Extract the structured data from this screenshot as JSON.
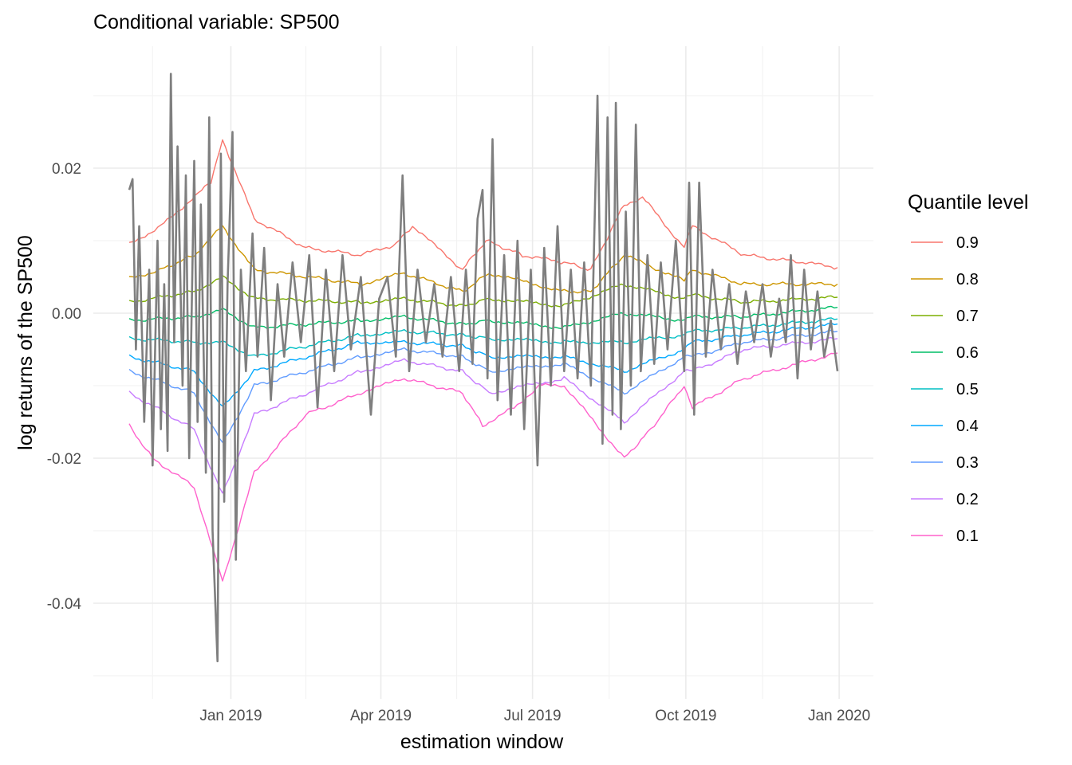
{
  "chart_data": {
    "type": "line",
    "title": "Conditional variable: SP500",
    "xlabel": "estimation window",
    "ylabel": "log returns of the SP500",
    "x_range": [
      "2018-11-01",
      "2019-12-31"
    ],
    "ylim": [
      -0.051,
      0.034
    ],
    "y_ticks": [
      -0.04,
      -0.02,
      0.0,
      0.02
    ],
    "y_tick_labels": [
      "-0.04",
      "-0.02",
      "0.00",
      "0.02"
    ],
    "x_ticks": [
      "2019-01-01",
      "2019-04-01",
      "2019-07-01",
      "2019-10-01",
      "2020-01-01"
    ],
    "x_tick_labels": [
      "Jan 2019",
      "Apr 2019",
      "Jul 2019",
      "Oct 2019",
      "Jan 2020"
    ],
    "grid": true,
    "legend": {
      "title": "Quantile level",
      "placement": "right",
      "entries": [
        "0.9",
        "0.8",
        "0.7",
        "0.6",
        "0.5",
        "0.4",
        "0.3",
        "0.2",
        "0.1"
      ]
    },
    "returns_series": {
      "color": "#7f7f7f",
      "points": [
        [
          "2018-11-01",
          0.017
        ],
        [
          "2018-11-03",
          0.0185
        ],
        [
          "2018-11-05",
          -0.005
        ],
        [
          "2018-11-07",
          0.012
        ],
        [
          "2018-11-10",
          -0.015
        ],
        [
          "2018-11-13",
          0.006
        ],
        [
          "2018-11-15",
          -0.021
        ],
        [
          "2018-11-18",
          0.01
        ],
        [
          "2018-11-20",
          -0.016
        ],
        [
          "2018-11-22",
          0.004
        ],
        [
          "2018-11-24",
          -0.019
        ],
        [
          "2018-11-26",
          0.033
        ],
        [
          "2018-11-28",
          -0.004
        ],
        [
          "2018-11-30",
          0.023
        ],
        [
          "2018-12-03",
          -0.01
        ],
        [
          "2018-12-05",
          0.019
        ],
        [
          "2018-12-07",
          -0.02
        ],
        [
          "2018-12-10",
          0.021
        ],
        [
          "2018-12-12",
          -0.015
        ],
        [
          "2018-12-14",
          0.015
        ],
        [
          "2018-12-17",
          -0.022
        ],
        [
          "2018-12-19",
          0.027
        ],
        [
          "2018-12-21",
          -0.03
        ],
        [
          "2018-12-24",
          -0.048
        ],
        [
          "2018-12-26",
          0.022
        ],
        [
          "2018-12-28",
          -0.026
        ],
        [
          "2018-12-30",
          0.004
        ],
        [
          "2019-01-02",
          0.025
        ],
        [
          "2019-01-04",
          -0.034
        ],
        [
          "2019-01-07",
          0.006
        ],
        [
          "2019-01-10",
          -0.008
        ],
        [
          "2019-01-14",
          0.011
        ],
        [
          "2019-01-17",
          -0.006
        ],
        [
          "2019-01-21",
          0.009
        ],
        [
          "2019-01-25",
          -0.012
        ],
        [
          "2019-01-29",
          0.004
        ],
        [
          "2019-02-02",
          -0.006
        ],
        [
          "2019-02-07",
          0.007
        ],
        [
          "2019-02-12",
          -0.004
        ],
        [
          "2019-02-17",
          0.008
        ],
        [
          "2019-02-22",
          -0.013
        ],
        [
          "2019-02-27",
          0.006
        ],
        [
          "2019-03-04",
          -0.008
        ],
        [
          "2019-03-09",
          0.008
        ],
        [
          "2019-03-14",
          -0.005
        ],
        [
          "2019-03-20",
          0.005
        ],
        [
          "2019-03-26",
          -0.014
        ],
        [
          "2019-03-31",
          0.002
        ],
        [
          "2019-04-05",
          0.005
        ],
        [
          "2019-04-10",
          -0.006
        ],
        [
          "2019-04-14",
          0.019
        ],
        [
          "2019-04-18",
          -0.008
        ],
        [
          "2019-04-23",
          0.006
        ],
        [
          "2019-04-28",
          -0.004
        ],
        [
          "2019-05-03",
          0.004
        ],
        [
          "2019-05-08",
          -0.006
        ],
        [
          "2019-05-13",
          0.005
        ],
        [
          "2019-05-18",
          -0.008
        ],
        [
          "2019-05-22",
          0.006
        ],
        [
          "2019-05-26",
          -0.007
        ],
        [
          "2019-05-29",
          0.013
        ],
        [
          "2019-06-01",
          0.017
        ],
        [
          "2019-06-04",
          -0.009
        ],
        [
          "2019-06-07",
          0.024
        ],
        [
          "2019-06-10",
          -0.012
        ],
        [
          "2019-06-14",
          0.008
        ],
        [
          "2019-06-18",
          -0.014
        ],
        [
          "2019-06-22",
          0.01
        ],
        [
          "2019-06-26",
          -0.016
        ],
        [
          "2019-06-30",
          0.006
        ],
        [
          "2019-07-04",
          -0.021
        ],
        [
          "2019-07-08",
          0.009
        ],
        [
          "2019-07-12",
          -0.01
        ],
        [
          "2019-07-16",
          0.012
        ],
        [
          "2019-07-20",
          -0.008
        ],
        [
          "2019-07-24",
          0.006
        ],
        [
          "2019-07-28",
          -0.009
        ],
        [
          "2019-08-01",
          0.007
        ],
        [
          "2019-08-05",
          -0.01
        ],
        [
          "2019-08-09",
          0.03
        ],
        [
          "2019-08-12",
          -0.018
        ],
        [
          "2019-08-15",
          0.027
        ],
        [
          "2019-08-18",
          -0.014
        ],
        [
          "2019-08-20",
          0.029
        ],
        [
          "2019-08-23",
          -0.016
        ],
        [
          "2019-08-26",
          0.014
        ],
        [
          "2019-08-29",
          -0.01
        ],
        [
          "2019-09-01",
          0.026
        ],
        [
          "2019-09-04",
          -0.008
        ],
        [
          "2019-09-08",
          0.008
        ],
        [
          "2019-09-12",
          -0.007
        ],
        [
          "2019-09-16",
          0.007
        ],
        [
          "2019-09-20",
          -0.005
        ],
        [
          "2019-09-25",
          0.01
        ],
        [
          "2019-09-30",
          -0.008
        ],
        [
          "2019-10-03",
          0.018
        ],
        [
          "2019-10-06",
          -0.014
        ],
        [
          "2019-10-09",
          0.018
        ],
        [
          "2019-10-13",
          -0.006
        ],
        [
          "2019-10-17",
          0.006
        ],
        [
          "2019-10-22",
          -0.005
        ],
        [
          "2019-10-27",
          0.004
        ],
        [
          "2019-11-01",
          -0.007
        ],
        [
          "2019-11-06",
          0.003
        ],
        [
          "2019-11-11",
          -0.004
        ],
        [
          "2019-11-16",
          0.004
        ],
        [
          "2019-11-21",
          -0.006
        ],
        [
          "2019-11-26",
          0.002
        ],
        [
          "2019-11-30",
          -0.004
        ],
        [
          "2019-12-03",
          0.008
        ],
        [
          "2019-12-07",
          -0.009
        ],
        [
          "2019-12-11",
          0.006
        ],
        [
          "2019-12-15",
          -0.005
        ],
        [
          "2019-12-19",
          0.003
        ],
        [
          "2019-12-23",
          -0.006
        ],
        [
          "2019-12-27",
          -0.001
        ],
        [
          "2019-12-31",
          -0.008
        ]
      ]
    },
    "series": [
      {
        "name": "0.9",
        "color": "#F8766D",
        "x": [
          "2018-11-01",
          "2018-11-20",
          "2018-12-05",
          "2018-12-20",
          "2018-12-27",
          "2019-01-15",
          "2019-02-15",
          "2019-03-20",
          "2019-04-10",
          "2019-04-20",
          "2019-05-20",
          "2019-06-03",
          "2019-06-25",
          "2019-07-20",
          "2019-08-05",
          "2019-08-25",
          "2019-09-05",
          "2019-09-30",
          "2019-10-05",
          "2019-11-05",
          "2019-12-10",
          "2019-12-31"
        ],
        "values": [
          0.0095,
          0.012,
          0.015,
          0.018,
          0.024,
          0.013,
          0.009,
          0.008,
          0.0095,
          0.012,
          0.006,
          0.01,
          0.008,
          0.007,
          0.006,
          0.015,
          0.016,
          0.009,
          0.012,
          0.008,
          0.007,
          0.0063
        ]
      },
      {
        "name": "0.8",
        "color": "#CD9600",
        "x": [
          "2018-11-01",
          "2018-11-20",
          "2018-12-10",
          "2018-12-27",
          "2019-01-15",
          "2019-03-20",
          "2019-04-15",
          "2019-05-20",
          "2019-06-05",
          "2019-07-20",
          "2019-08-05",
          "2019-08-25",
          "2019-09-30",
          "2019-10-05",
          "2019-11-05",
          "2019-12-31"
        ],
        "values": [
          0.0048,
          0.006,
          0.008,
          0.012,
          0.006,
          0.004,
          0.0055,
          0.003,
          0.0055,
          0.003,
          0.003,
          0.008,
          0.0045,
          0.006,
          0.004,
          0.004
        ]
      },
      {
        "name": "0.7",
        "color": "#7CAE00",
        "x": [
          "2018-11-01",
          "2018-12-10",
          "2018-12-27",
          "2019-01-15",
          "2019-03-20",
          "2019-04-15",
          "2019-05-20",
          "2019-06-05",
          "2019-07-20",
          "2019-08-25",
          "2019-09-30",
          "2019-10-05",
          "2019-11-05",
          "2019-12-31"
        ],
        "values": [
          0.0015,
          0.003,
          0.005,
          0.002,
          0.0015,
          0.002,
          0.001,
          0.002,
          0.001,
          0.004,
          0.002,
          0.0025,
          0.0015,
          0.0022
        ]
      },
      {
        "name": "0.6",
        "color": "#00BE67",
        "x": [
          "2018-11-01",
          "2018-12-10",
          "2018-12-27",
          "2019-01-15",
          "2019-03-20",
          "2019-04-15",
          "2019-05-20",
          "2019-06-05",
          "2019-07-20",
          "2019-08-25",
          "2019-09-30",
          "2019-10-05",
          "2019-11-05",
          "2019-12-31"
        ],
        "values": [
          -0.001,
          -0.0005,
          0.0005,
          -0.002,
          -0.001,
          -0.0005,
          -0.0015,
          -0.001,
          -0.002,
          0.0,
          -0.001,
          -0.0005,
          -0.0005,
          0.0008
        ]
      },
      {
        "name": "0.5",
        "color": "#00BFC4",
        "x": [
          "2018-11-01",
          "2018-12-10",
          "2018-12-27",
          "2019-01-15",
          "2019-03-20",
          "2019-04-15",
          "2019-05-20",
          "2019-06-05",
          "2019-07-20",
          "2019-08-25",
          "2019-09-30",
          "2019-10-05",
          "2019-11-05",
          "2019-12-31"
        ],
        "values": [
          -0.0035,
          -0.004,
          -0.004,
          -0.006,
          -0.003,
          -0.0025,
          -0.003,
          -0.0035,
          -0.004,
          -0.004,
          -0.003,
          -0.0025,
          -0.002,
          -0.0008
        ]
      },
      {
        "name": "0.4",
        "color": "#00A9FF",
        "x": [
          "2018-11-01",
          "2018-12-10",
          "2018-12-27",
          "2019-01-15",
          "2019-03-20",
          "2019-04-15",
          "2019-05-20",
          "2019-06-05",
          "2019-07-20",
          "2019-08-25",
          "2019-09-30",
          "2019-10-05",
          "2019-11-05",
          "2019-12-31"
        ],
        "values": [
          -0.006,
          -0.008,
          -0.013,
          -0.008,
          -0.004,
          -0.004,
          -0.0045,
          -0.006,
          -0.006,
          -0.008,
          -0.005,
          -0.004,
          -0.003,
          -0.0015
        ]
      },
      {
        "name": "0.3",
        "color": "#619CFF",
        "x": [
          "2018-11-01",
          "2018-12-10",
          "2018-12-27",
          "2019-01-15",
          "2019-03-20",
          "2019-04-15",
          "2019-05-20",
          "2019-06-05",
          "2019-07-20",
          "2019-08-25",
          "2019-09-30",
          "2019-10-05",
          "2019-11-05",
          "2019-12-31"
        ],
        "values": [
          -0.008,
          -0.011,
          -0.018,
          -0.01,
          -0.006,
          -0.005,
          -0.006,
          -0.008,
          -0.007,
          -0.011,
          -0.006,
          -0.006,
          -0.004,
          -0.0025
        ]
      },
      {
        "name": "0.2",
        "color": "#C77CFF",
        "x": [
          "2018-11-01",
          "2018-12-10",
          "2018-12-27",
          "2019-01-15",
          "2019-03-20",
          "2019-04-15",
          "2019-05-20",
          "2019-06-05",
          "2019-07-20",
          "2019-08-25",
          "2019-09-30",
          "2019-10-05",
          "2019-11-05",
          "2019-12-31"
        ],
        "values": [
          -0.011,
          -0.016,
          -0.025,
          -0.014,
          -0.008,
          -0.0065,
          -0.008,
          -0.011,
          -0.009,
          -0.015,
          -0.008,
          -0.008,
          -0.005,
          -0.0035
        ]
      },
      {
        "name": "0.1",
        "color": "#FF61CC",
        "x": [
          "2018-11-01",
          "2018-11-15",
          "2018-12-10",
          "2018-12-27",
          "2019-01-15",
          "2019-02-15",
          "2019-03-20",
          "2019-04-15",
          "2019-05-20",
          "2019-06-01",
          "2019-06-20",
          "2019-07-05",
          "2019-07-20",
          "2019-08-25",
          "2019-09-10",
          "2019-09-30",
          "2019-10-05",
          "2019-11-05",
          "2019-12-31"
        ],
        "values": [
          -0.0155,
          -0.02,
          -0.024,
          -0.037,
          -0.022,
          -0.014,
          -0.011,
          -0.009,
          -0.011,
          -0.0155,
          -0.013,
          -0.01,
          -0.01,
          -0.02,
          -0.016,
          -0.01,
          -0.013,
          -0.009,
          -0.0055
        ]
      }
    ]
  }
}
